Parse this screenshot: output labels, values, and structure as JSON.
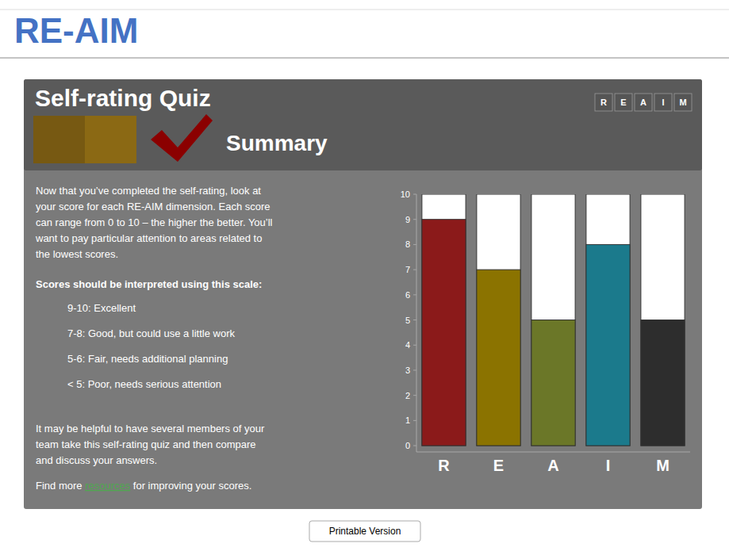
{
  "chart_data": {
    "type": "bar",
    "title": "RE-AIM",
    "categories": [
      "R",
      "E",
      "A",
      "I",
      "M"
    ],
    "values": [
      9,
      7,
      5,
      8,
      5
    ],
    "colors": [
      "#8B1A1A",
      "#8B7300",
      "#6B7728",
      "#1B7A8C",
      "#2d2d2d"
    ],
    "ylim": [
      -0.25,
      10
    ],
    "yticks": [
      0,
      1,
      2,
      3,
      4,
      5,
      6,
      7,
      8,
      9,
      10
    ],
    "grid": false,
    "annotations": [
      "Self-rating Quiz",
      "Summary",
      "R",
      "E",
      "A",
      "I",
      "M",
      "Now that you’ve completed the self-rating, look at\nyour score for each RE-AIM dimension. Each score\ncan range from 0 to 10 – the higher the better. You’ll\nwant to pay particular attention to areas related to\nthe lowest scores.",
      "Scores should be interpreted using this scale:",
      "9-10: Excellent",
      "7-8: Good, but could use a little work",
      "5-6: Fair, needs additional planning",
      "< 5: Poor, needs serious attention",
      "It may be helpful to have several members of your\nteam take this self-rating quiz and then compare\nand discuss your answers.",
      "Find more ",
      "resources",
      " for improving your scores.",
      "Printable Version"
    ]
  }
}
